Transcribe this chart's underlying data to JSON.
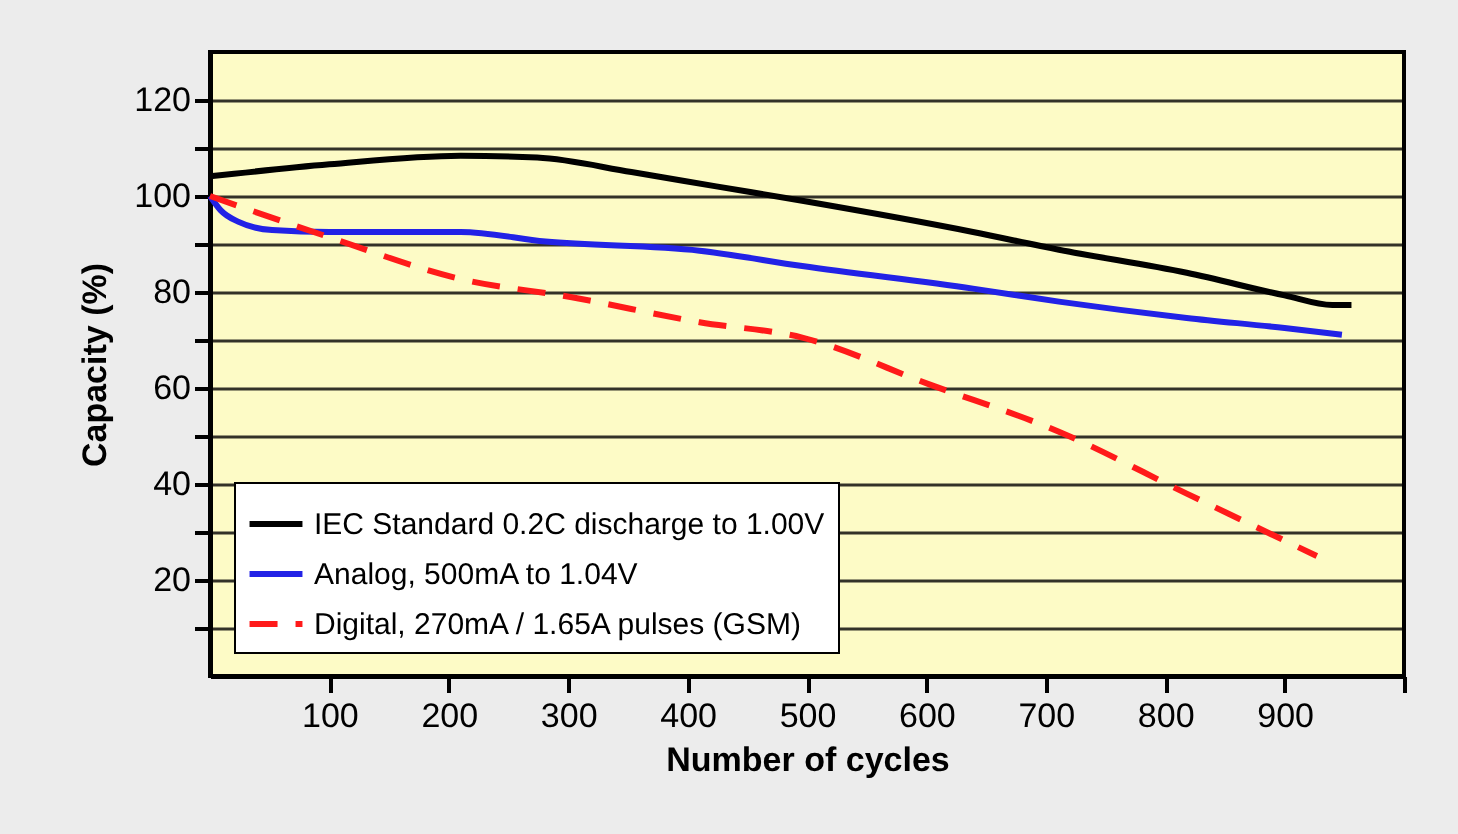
{
  "chart_data": {
    "type": "line",
    "xlabel": "Number of cycles",
    "ylabel": "Capacity (%)",
    "xlim": [
      0,
      1000
    ],
    "xticks": [
      100,
      200,
      300,
      400,
      500,
      600,
      700,
      800,
      900,
      {
        "value": 1000,
        "label": null
      }
    ],
    "ylim": [
      0,
      130
    ],
    "yticks": [
      {
        "value": 10,
        "label": null
      },
      20,
      {
        "value": 30,
        "label": null
      },
      40,
      {
        "value": 50,
        "label": null
      },
      60,
      {
        "value": 70,
        "label": null
      },
      80,
      {
        "value": 90,
        "label": null
      },
      100,
      {
        "value": 110,
        "label": null
      },
      120
    ],
    "grid": "y",
    "legend": "bottom left",
    "marker": "none",
    "series": [
      {
        "name": "IEC Standard 0.2C discharge to 1.00V",
        "color": "#000000",
        "line_style": "solid",
        "x": [
          0,
          100,
          210,
          274,
          353,
          424,
          496,
          639,
          711,
          818,
          900,
          940,
          956
        ],
        "values": [
          104.1,
          106.6,
          108.4,
          108,
          105,
          102,
          99,
          92.5,
          88.8,
          84,
          79.3,
          77.3,
          77.3
        ]
      },
      {
        "name": "Analog, 500mA to 1.04V",
        "color": "#2222e6",
        "line_style": "solid",
        "x": [
          0,
          9,
          24,
          52,
          100,
          210,
          281,
          410,
          496,
          639,
          711,
          818,
          900,
          948
        ],
        "values": [
          100,
          97,
          94.6,
          92.9,
          92.5,
          92.5,
          90.5,
          88.6,
          85.4,
          80.7,
          78,
          74.6,
          72.5,
          71.1
        ]
      },
      {
        "name": "Digital, 270mA / 1.65A pulses (GSM)",
        "color": "#ff1a1a",
        "line_style": "dashed",
        "x": [
          0,
          100,
          210,
          303,
          410,
          496,
          603,
          711,
          818,
          927
        ],
        "values": [
          100,
          91.4,
          82.7,
          78.9,
          73.7,
          70.5,
          60.7,
          50.9,
          38,
          25
        ]
      }
    ]
  }
}
